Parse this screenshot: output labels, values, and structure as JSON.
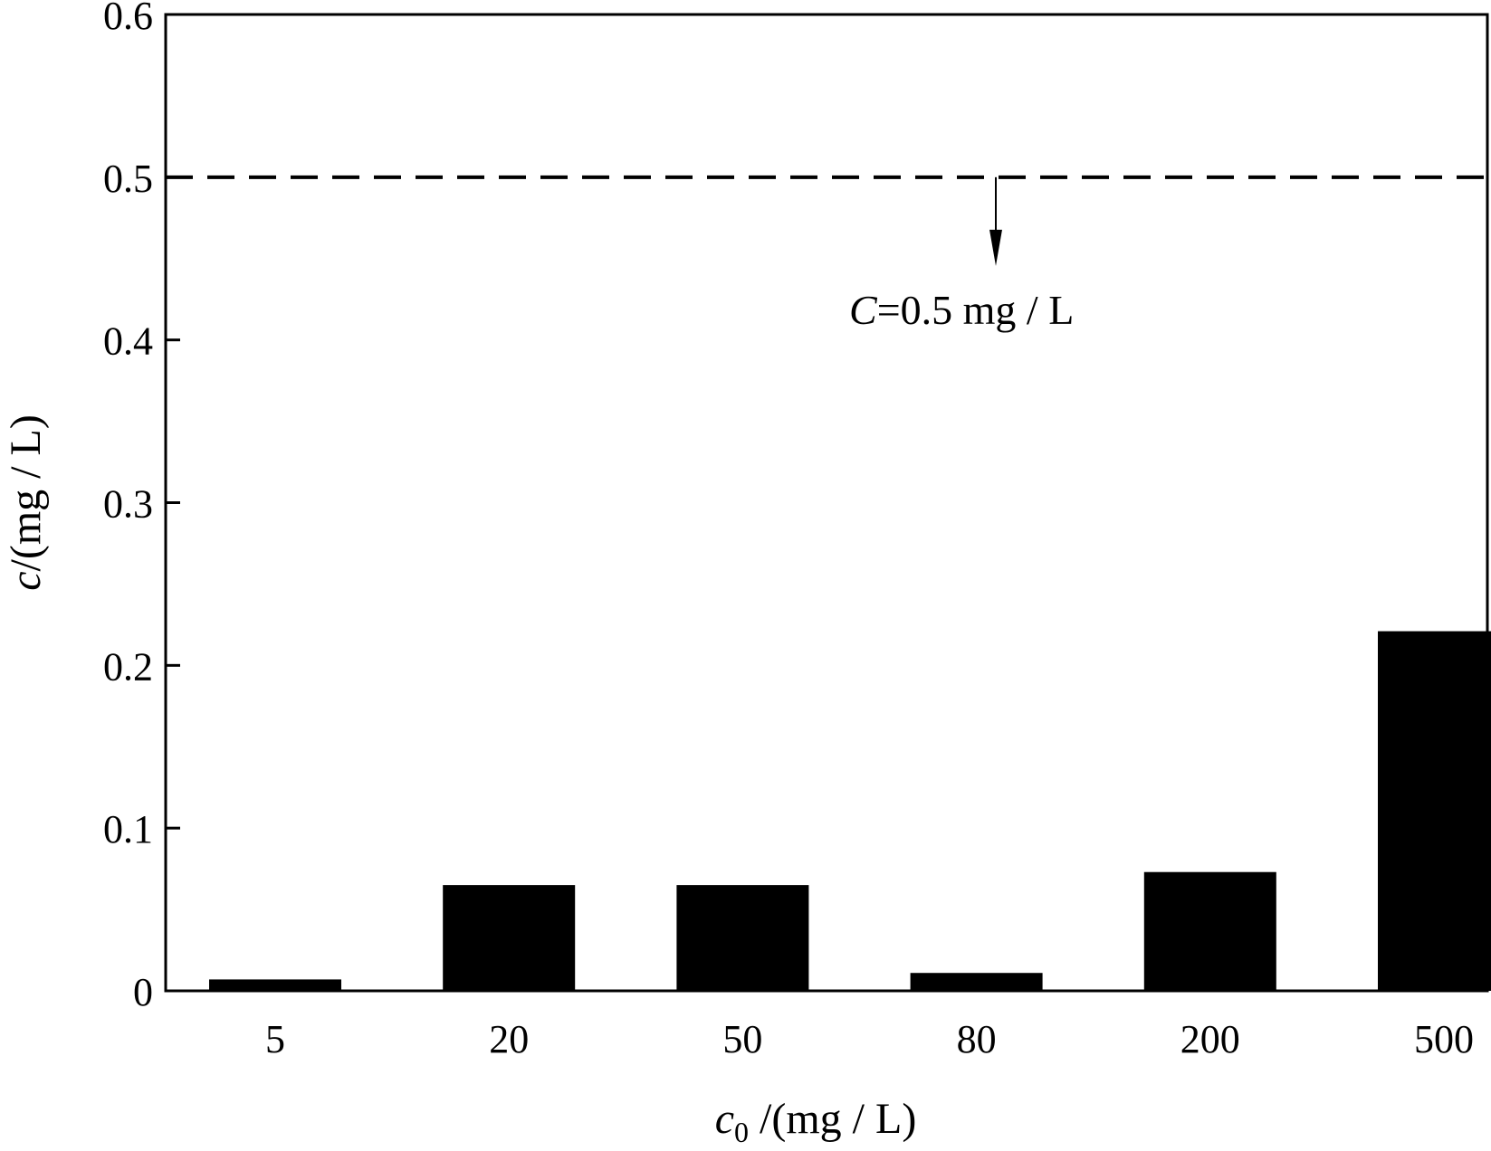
{
  "chart_data": {
    "type": "bar",
    "categories": [
      "5",
      "20",
      "50",
      "80",
      "200",
      "500"
    ],
    "values": [
      0.007,
      0.065,
      0.065,
      0.011,
      0.073,
      0.221
    ],
    "title": "",
    "xlabel": {
      "var": "c",
      "sub": "0",
      "unit": " /(mg / L)"
    },
    "ylabel": {
      "var": "c",
      "unit": "/(mg / L)"
    },
    "ylim": [
      0,
      0.6
    ],
    "yticks": [
      "0",
      "0.1",
      "0.2",
      "0.3",
      "0.4",
      "0.5",
      "0.6"
    ],
    "grid": false,
    "bar_color": "#000000",
    "reference_line": {
      "y": 0.5,
      "style": "dashed",
      "label_var": "C",
      "label_text": "=0.5 mg / L"
    }
  }
}
